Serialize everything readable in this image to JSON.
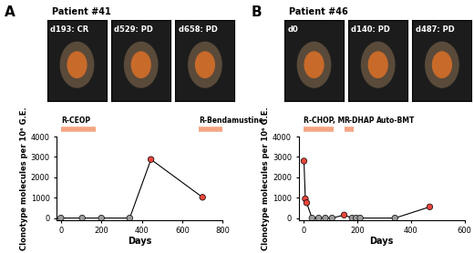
{
  "chart_data": [
    {
      "panel_label": "A",
      "title": "Patient #41",
      "type": "line",
      "scans": [
        "d193: CR",
        "d529: PD",
        "d658: PD"
      ],
      "x_label": "Days",
      "y_label": "Clonotype molecules per 10⁶ G.E.",
      "treatments": [
        {
          "label": "R-CEOP",
          "start": 0,
          "end": 170
        },
        {
          "label": "R-Bendamustine",
          "start": 680,
          "end": 800
        }
      ],
      "xlim": [
        -20,
        800
      ],
      "xticks": [
        0,
        200,
        400,
        600,
        800
      ],
      "ylim": [
        -100,
        4000
      ],
      "yticks": [
        0,
        1000,
        2000,
        3000,
        4000
      ],
      "series": [
        {
          "color": "#000000",
          "marker": "circle",
          "line_style": "solid",
          "x": [
            0,
            105,
            200,
            340,
            445,
            700
          ],
          "values": [
            0,
            0,
            0,
            0,
            2880,
            1020
          ],
          "colors": [
            "#9a9a9a",
            "#9a9a9a",
            "#9a9a9a",
            "#9a9a9a",
            "#e8453c",
            "#e8453c"
          ]
        }
      ]
    },
    {
      "panel_label": "B",
      "title": "Patient #46",
      "type": "line",
      "scans": [
        "d0",
        "d140: PD",
        "d487: PD"
      ],
      "x_label": "Days",
      "y_label": "Clonotype molecules per 10⁶ G.E.",
      "treatments": [
        {
          "label": "R-CHOP, M",
          "start": 0,
          "end": 110
        },
        {
          "label": "R-DHAP",
          "start": 150,
          "end": 185
        },
        {
          "label": "Auto-BMT",
          "start": 270
        }
      ],
      "xlim": [
        -20,
        600
      ],
      "xticks": [
        0,
        200,
        400,
        600
      ],
      "ylim": [
        -100,
        4000
      ],
      "yticks": [
        0,
        1000,
        2000,
        3000,
        4000
      ],
      "series": [
        {
          "color": "#000000",
          "marker": "circle",
          "line_style": "solid",
          "x": [
            0,
            5,
            10,
            30,
            55,
            80,
            105,
            150,
            180,
            195,
            210,
            340,
            470
          ],
          "values": [
            2800,
            950,
            750,
            0,
            0,
            0,
            0,
            150,
            0,
            0,
            0,
            0,
            550
          ],
          "colors": [
            "#e8453c",
            "#e8453c",
            "#e8453c",
            "#9a9a9a",
            "#9a9a9a",
            "#9a9a9a",
            "#9a9a9a",
            "#e8453c",
            "#9a9a9a",
            "#9a9a9a",
            "#9a9a9a",
            "#9a9a9a",
            "#e8453c"
          ]
        }
      ]
    }
  ]
}
